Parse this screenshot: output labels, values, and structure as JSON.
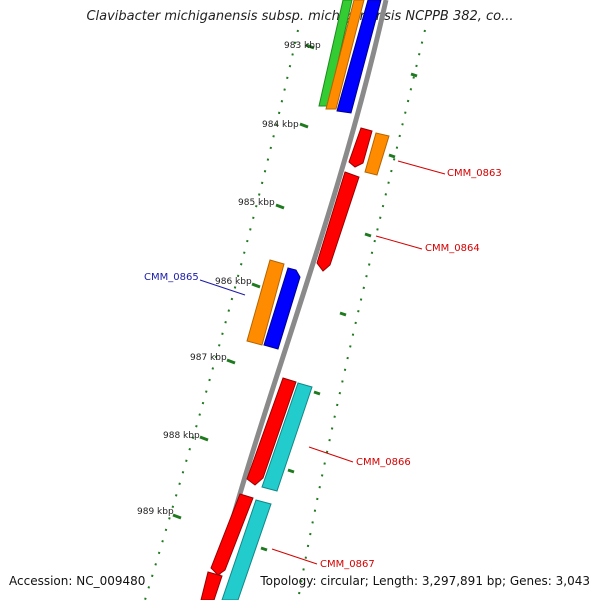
{
  "map_title": "Clavibacter michiganensis subsp. michiganensis NCPPB 382, co...",
  "footer": {
    "accession": "Accession: NC_009480",
    "summary": "Topology: circular; Length: 3,297,891 bp; Genes: 3,043"
  },
  "colors": {
    "backbone": "#8a8a8a",
    "tick": "#1f7a1f",
    "forward_label": "#d40000",
    "reverse_label": "#1a1aa8",
    "gene_red": "#ff0000",
    "gene_orange": "#ff8c00",
    "gene_blue": "#0000ff",
    "gene_green": "#33cc33",
    "gene_cyan": "#22cccc"
  },
  "scale": {
    "unit": "kbp",
    "ticks": [
      {
        "kbp": 983,
        "label": "983 kbp"
      },
      {
        "kbp": 984,
        "label": "984 kbp"
      },
      {
        "kbp": 985,
        "label": "985 kbp"
      },
      {
        "kbp": 986,
        "label": "986 kbp"
      },
      {
        "kbp": 987,
        "label": "987 kbp"
      },
      {
        "kbp": 988,
        "label": "988 kbp"
      },
      {
        "kbp": 989,
        "label": "989 kbp"
      }
    ]
  },
  "gene_labels": [
    {
      "id": "CMM_0863",
      "text": "CMM_0863"
    },
    {
      "id": "CMM_0864",
      "text": "CMM_0864"
    },
    {
      "id": "CMM_0865",
      "text": "CMM_0865"
    },
    {
      "id": "CMM_0866",
      "text": "CMM_0866"
    },
    {
      "id": "CMM_0867",
      "text": "CMM_0867"
    }
  ]
}
